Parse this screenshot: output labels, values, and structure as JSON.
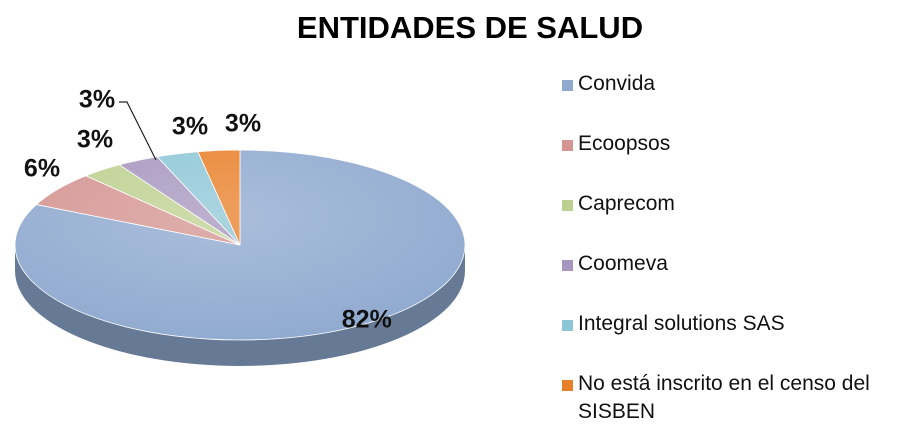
{
  "chart_data": {
    "type": "pie",
    "title": "ENTIDADES DE SALUD",
    "categories": [
      "Convida",
      "Ecoopsos",
      "Caprecom",
      "Coomeva",
      "Integral solutions SAS",
      "No está inscrito en el censo del SISBEN"
    ],
    "values": [
      82,
      6,
      3,
      3,
      3,
      3
    ],
    "value_labels": [
      "82%",
      "6%",
      "3%",
      "3%",
      "3%",
      "3%"
    ],
    "colors": [
      "#8fa9cf",
      "#d49491",
      "#bdd08f",
      "#a796be",
      "#8dc6d6",
      "#e8802a"
    ],
    "legend": "right"
  }
}
